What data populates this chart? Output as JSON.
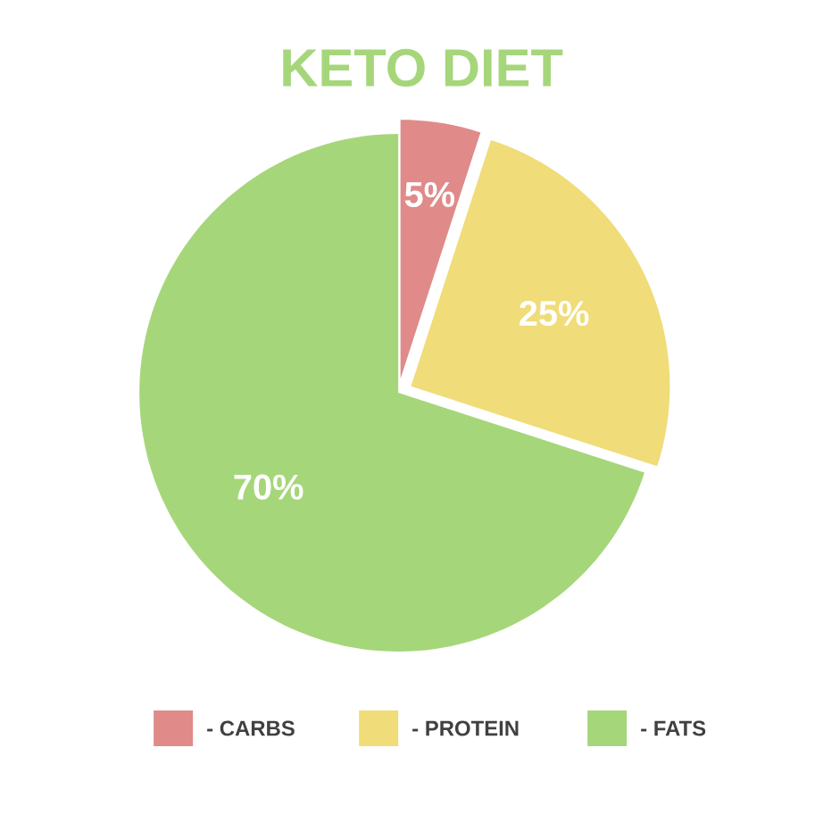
{
  "chart_data": {
    "type": "pie",
    "title": "KETO DIET",
    "categories": [
      "- CARBS",
      "- PROTEIN",
      "- FATS"
    ],
    "values": [
      5,
      25,
      70
    ],
    "value_labels": [
      "5%",
      "25%",
      "70%"
    ],
    "colors": [
      "#e08a8a",
      "#f0dc78",
      "#a6d67a"
    ],
    "legend": "bottom"
  }
}
